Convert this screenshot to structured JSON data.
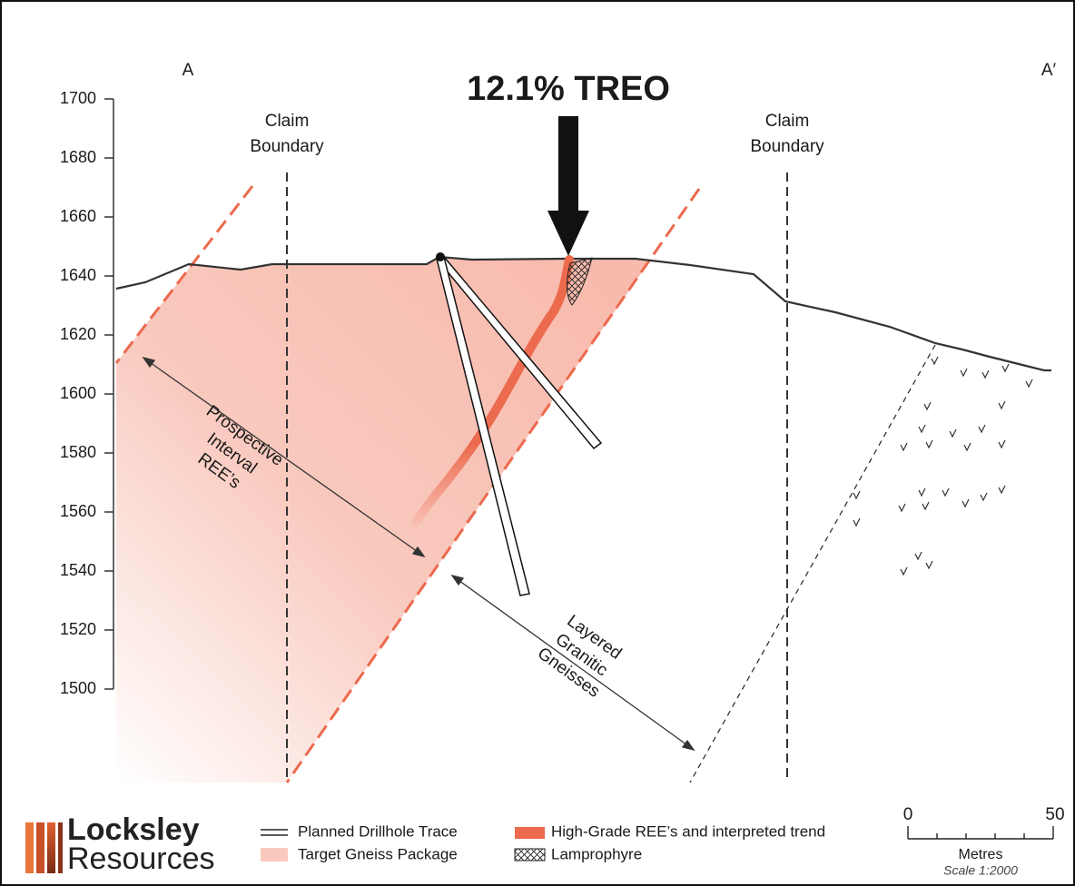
{
  "section": {
    "start_label": "A",
    "end_label": "A′",
    "headline": "12.1% TREO",
    "claim_boundaries": [
      {
        "line1": "Claim",
        "line2": "Boundary"
      },
      {
        "line1": "Claim",
        "line2": "Boundary"
      }
    ],
    "annotations": [
      {
        "lines": [
          "Prospective",
          "Interval",
          "REE’s"
        ]
      },
      {
        "lines": [
          "Layered",
          "Granitic",
          "Gneisses"
        ]
      }
    ]
  },
  "elevation_axis": {
    "ylim": [
      1500,
      1700
    ],
    "yticks": [
      1500,
      1520,
      1540,
      1560,
      1580,
      1600,
      1620,
      1640,
      1660,
      1680,
      1700
    ]
  },
  "legend": [
    {
      "label": "Planned Drillhole Trace"
    },
    {
      "label": "Target Gneiss Package"
    },
    {
      "label": "High-Grade REE’s and interpreted trend"
    },
    {
      "label": "Lamprophyre"
    }
  ],
  "logo": {
    "line1": "Locksley",
    "line2": "Resources"
  },
  "scale": {
    "start": "0",
    "end": "50",
    "unit": "Metres",
    "note": "Scale 1:2000"
  }
}
